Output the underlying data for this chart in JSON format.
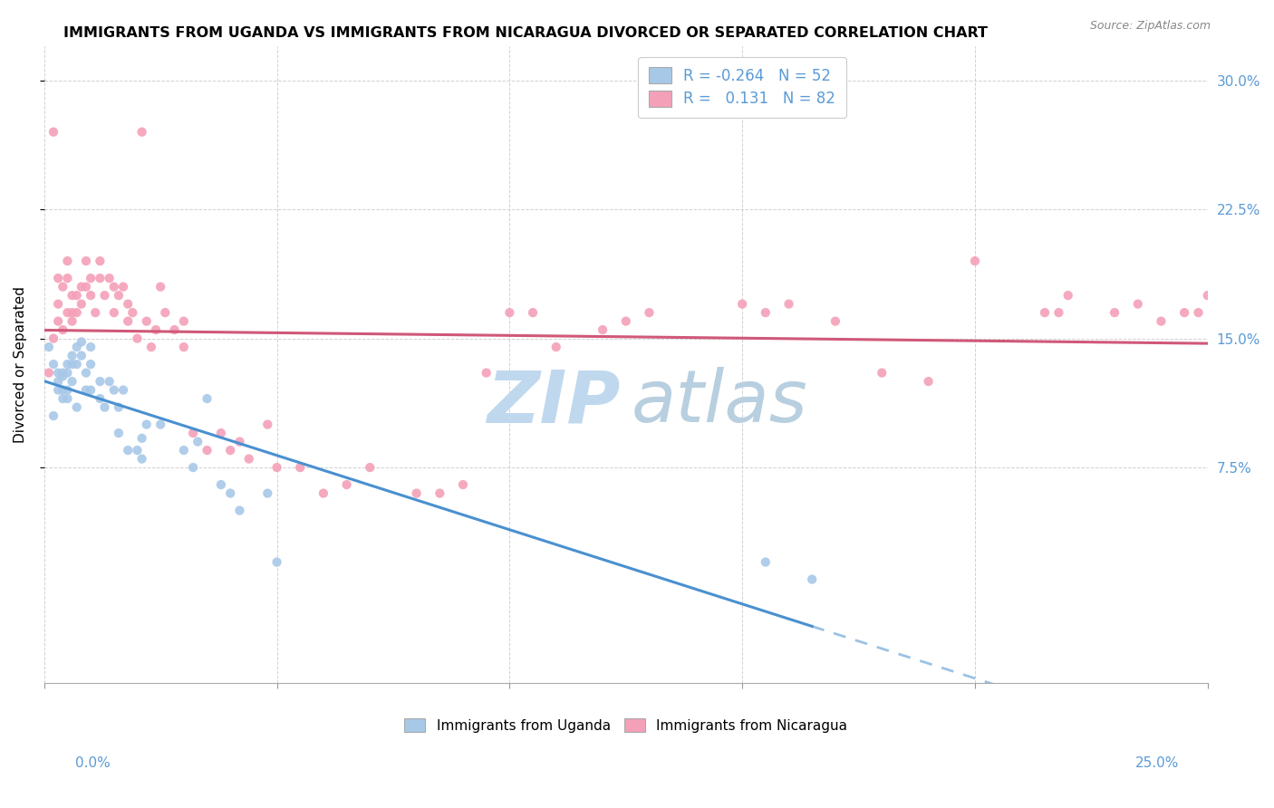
{
  "title": "IMMIGRANTS FROM UGANDA VS IMMIGRANTS FROM NICARAGUA DIVORCED OR SEPARATED CORRELATION CHART",
  "source": "Source: ZipAtlas.com",
  "ylabel": "Divorced or Separated",
  "legend_uganda": "Immigrants from Uganda",
  "legend_nicaragua": "Immigrants from Nicaragua",
  "R_uganda": -0.264,
  "N_uganda": 52,
  "R_nicaragua": 0.131,
  "N_nicaragua": 82,
  "color_uganda": "#a8c8e8",
  "color_nicaragua": "#f4a0b8",
  "color_uganda_line": "#4a90d0",
  "color_nicaragua_line": "#d05878",
  "color_watermark_zip": "#c0d8ee",
  "color_watermark_atlas": "#b8cfe0",
  "xlim": [
    0.0,
    0.25
  ],
  "ylim": [
    -0.05,
    0.32
  ],
  "ytick_values": [
    0.075,
    0.15,
    0.225,
    0.3
  ],
  "xtick_values": [
    0.0,
    0.05,
    0.1,
    0.15,
    0.2,
    0.25
  ],
  "uganda_x": [
    0.001,
    0.002,
    0.002,
    0.003,
    0.003,
    0.003,
    0.004,
    0.004,
    0.004,
    0.004,
    0.005,
    0.005,
    0.005,
    0.005,
    0.006,
    0.006,
    0.006,
    0.007,
    0.007,
    0.007,
    0.008,
    0.008,
    0.009,
    0.009,
    0.01,
    0.01,
    0.01,
    0.012,
    0.012,
    0.013,
    0.014,
    0.015,
    0.016,
    0.016,
    0.017,
    0.018,
    0.02,
    0.021,
    0.021,
    0.022,
    0.025,
    0.03,
    0.032,
    0.033,
    0.035,
    0.038,
    0.04,
    0.042,
    0.048,
    0.05,
    0.155,
    0.165
  ],
  "uganda_y": [
    0.145,
    0.135,
    0.105,
    0.13,
    0.125,
    0.12,
    0.13,
    0.128,
    0.12,
    0.115,
    0.135,
    0.13,
    0.12,
    0.115,
    0.14,
    0.135,
    0.125,
    0.145,
    0.135,
    0.11,
    0.148,
    0.14,
    0.13,
    0.12,
    0.145,
    0.135,
    0.12,
    0.125,
    0.115,
    0.11,
    0.125,
    0.12,
    0.11,
    0.095,
    0.12,
    0.085,
    0.085,
    0.08,
    0.092,
    0.1,
    0.1,
    0.085,
    0.075,
    0.09,
    0.115,
    0.065,
    0.06,
    0.05,
    0.06,
    0.02,
    0.02,
    0.01
  ],
  "nicaragua_x": [
    0.001,
    0.002,
    0.002,
    0.003,
    0.003,
    0.003,
    0.004,
    0.004,
    0.005,
    0.005,
    0.005,
    0.006,
    0.006,
    0.006,
    0.007,
    0.007,
    0.008,
    0.008,
    0.009,
    0.009,
    0.01,
    0.01,
    0.011,
    0.012,
    0.012,
    0.013,
    0.014,
    0.015,
    0.015,
    0.016,
    0.017,
    0.018,
    0.018,
    0.019,
    0.02,
    0.021,
    0.022,
    0.023,
    0.024,
    0.025,
    0.026,
    0.028,
    0.03,
    0.03,
    0.032,
    0.035,
    0.038,
    0.04,
    0.042,
    0.044,
    0.048,
    0.05,
    0.055,
    0.06,
    0.065,
    0.07,
    0.08,
    0.085,
    0.09,
    0.095,
    0.1,
    0.105,
    0.11,
    0.12,
    0.125,
    0.13,
    0.15,
    0.155,
    0.16,
    0.17,
    0.18,
    0.19,
    0.2,
    0.215,
    0.218,
    0.22,
    0.23,
    0.235,
    0.24,
    0.245,
    0.248,
    0.25
  ],
  "nicaragua_y": [
    0.13,
    0.27,
    0.15,
    0.185,
    0.17,
    0.16,
    0.18,
    0.155,
    0.195,
    0.185,
    0.165,
    0.175,
    0.165,
    0.16,
    0.175,
    0.165,
    0.18,
    0.17,
    0.195,
    0.18,
    0.185,
    0.175,
    0.165,
    0.195,
    0.185,
    0.175,
    0.185,
    0.18,
    0.165,
    0.175,
    0.18,
    0.17,
    0.16,
    0.165,
    0.15,
    0.27,
    0.16,
    0.145,
    0.155,
    0.18,
    0.165,
    0.155,
    0.16,
    0.145,
    0.095,
    0.085,
    0.095,
    0.085,
    0.09,
    0.08,
    0.1,
    0.075,
    0.075,
    0.06,
    0.065,
    0.075,
    0.06,
    0.06,
    0.065,
    0.13,
    0.165,
    0.165,
    0.145,
    0.155,
    0.16,
    0.165,
    0.17,
    0.165,
    0.17,
    0.16,
    0.13,
    0.125,
    0.195,
    0.165,
    0.165,
    0.175,
    0.165,
    0.17,
    0.16,
    0.165,
    0.165,
    0.175
  ]
}
